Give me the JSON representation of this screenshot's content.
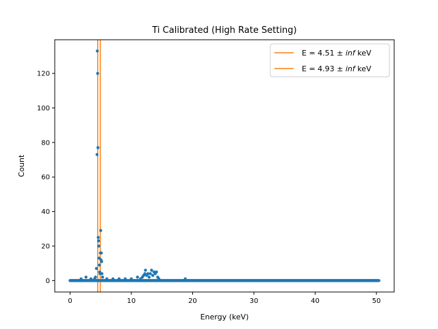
{
  "chart_data": {
    "type": "scatter",
    "title": "Ti Calibrated (High Rate Setting)",
    "xlabel": "Energy (keV)",
    "ylabel": "Count",
    "xlim": [
      -2.5,
      52.9
    ],
    "ylim": [
      -6.6,
      139.5
    ],
    "x_ticks": [
      0,
      10,
      20,
      30,
      40,
      50
    ],
    "y_ticks": [
      0,
      20,
      40,
      60,
      80,
      100,
      120
    ],
    "grid": false,
    "legend_position": "top-right",
    "colors": {
      "points": "#1f77b4",
      "lines": "#ff7f0e"
    },
    "vlines": [
      {
        "label": "E = 4.51 ± inf keV",
        "label_prefix": "E = 4.51 ± ",
        "label_italic": "inf",
        "label_suffix": " keV",
        "x": 4.51
      },
      {
        "label": "E = 4.93 ± inf keV",
        "label_prefix": "E = 4.93 ± ",
        "label_italic": "inf",
        "label_suffix": " keV",
        "x": 4.93
      }
    ],
    "points": {
      "baseline": {
        "x_start": 0,
        "x_end": 50.4,
        "step": 0.12,
        "y": 0
      },
      "features": [
        [
          1.8,
          1
        ],
        [
          2.6,
          2
        ],
        [
          3.4,
          1
        ],
        [
          4.0,
          1
        ],
        [
          4.15,
          2
        ],
        [
          4.3,
          7
        ],
        [
          4.4,
          73
        ],
        [
          4.45,
          133
        ],
        [
          4.5,
          120
        ],
        [
          4.55,
          77
        ],
        [
          4.6,
          25
        ],
        [
          4.65,
          23
        ],
        [
          4.7,
          20
        ],
        [
          4.75,
          13
        ],
        [
          4.8,
          9
        ],
        [
          4.85,
          5
        ],
        [
          4.9,
          4
        ],
        [
          4.95,
          16
        ],
        [
          5.0,
          29
        ],
        [
          5.05,
          12
        ],
        [
          5.1,
          16
        ],
        [
          5.15,
          11
        ],
        [
          5.2,
          4
        ],
        [
          5.3,
          2
        ],
        [
          6.0,
          1
        ],
        [
          7.0,
          1
        ],
        [
          8.0,
          1
        ],
        [
          9.0,
          1
        ],
        [
          10.0,
          1
        ],
        [
          11.0,
          2
        ],
        [
          11.5,
          1
        ],
        [
          11.8,
          2
        ],
        [
          12.0,
          3
        ],
        [
          12.2,
          4
        ],
        [
          12.3,
          6
        ],
        [
          12.5,
          3
        ],
        [
          12.7,
          4
        ],
        [
          12.9,
          2
        ],
        [
          13.1,
          4
        ],
        [
          13.3,
          6
        ],
        [
          13.5,
          3
        ],
        [
          13.7,
          5
        ],
        [
          13.9,
          4
        ],
        [
          14.1,
          5
        ],
        [
          14.3,
          2
        ],
        [
          14.5,
          1
        ],
        [
          18.8,
          1
        ]
      ]
    }
  }
}
